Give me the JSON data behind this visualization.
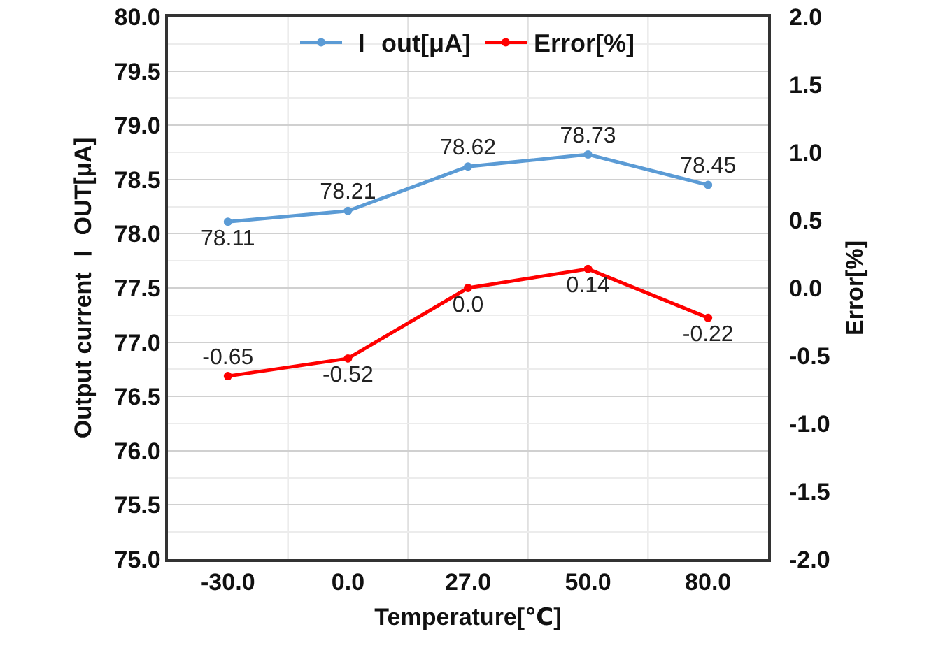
{
  "chart_data": {
    "type": "line",
    "xlabel": "Temperature[℃]",
    "ylabel": "Output current Ｉ OUT[μA]",
    "y2label": "Error[%]",
    "categories": [
      "-30.0",
      "0.0",
      "27.0",
      "50.0",
      "80.0"
    ],
    "series": [
      {
        "name": "Ｉ out[μA]",
        "color": "#5b9bd5",
        "values": [
          78.11,
          78.21,
          78.62,
          78.73,
          78.45
        ],
        "value_labels": [
          "78.11",
          "78.21",
          "78.62",
          "78.73",
          "78.45"
        ]
      },
      {
        "name": "Error[%]",
        "color": "#ff0000",
        "axis": "y2",
        "values": [
          -0.65,
          -0.52,
          0.0,
          0.14,
          -0.22
        ],
        "value_labels": [
          "-0.65",
          "-0.52",
          "0.0",
          "0.14",
          "-0.22"
        ]
      }
    ],
    "ylim": [
      75,
      80
    ],
    "yticks": [
      {
        "value": 75,
        "label": "75.0"
      },
      {
        "value": 75.5,
        "label": "75.5"
      },
      {
        "value": 76,
        "label": "76.0"
      },
      {
        "value": 76.5,
        "label": "76.5"
      },
      {
        "value": 77,
        "label": "77.0"
      },
      {
        "value": 77.5,
        "label": "77.5"
      },
      {
        "value": 78,
        "label": "78.0"
      },
      {
        "value": 78.5,
        "label": "78.5"
      },
      {
        "value": 79,
        "label": "79.0"
      },
      {
        "value": 79.5,
        "label": "79.5"
      },
      {
        "value": 80,
        "label": "80.0"
      }
    ],
    "y2lim": [
      -2,
      2
    ],
    "y2ticks": [
      {
        "value": -2,
        "label": "-2.0"
      },
      {
        "value": -1.5,
        "label": "-1.5"
      },
      {
        "value": -1,
        "label": "-1.0"
      },
      {
        "value": -0.5,
        "label": "-0.5"
      },
      {
        "value": 0,
        "label": "0.0"
      },
      {
        "value": 0.5,
        "label": "0.5"
      },
      {
        "value": 1,
        "label": "1.0"
      },
      {
        "value": 1.5,
        "label": "1.5"
      },
      {
        "value": 2,
        "label": "2.0"
      }
    ],
    "grid": true,
    "legend": "top",
    "marker": "circle",
    "line_style": "solid"
  }
}
